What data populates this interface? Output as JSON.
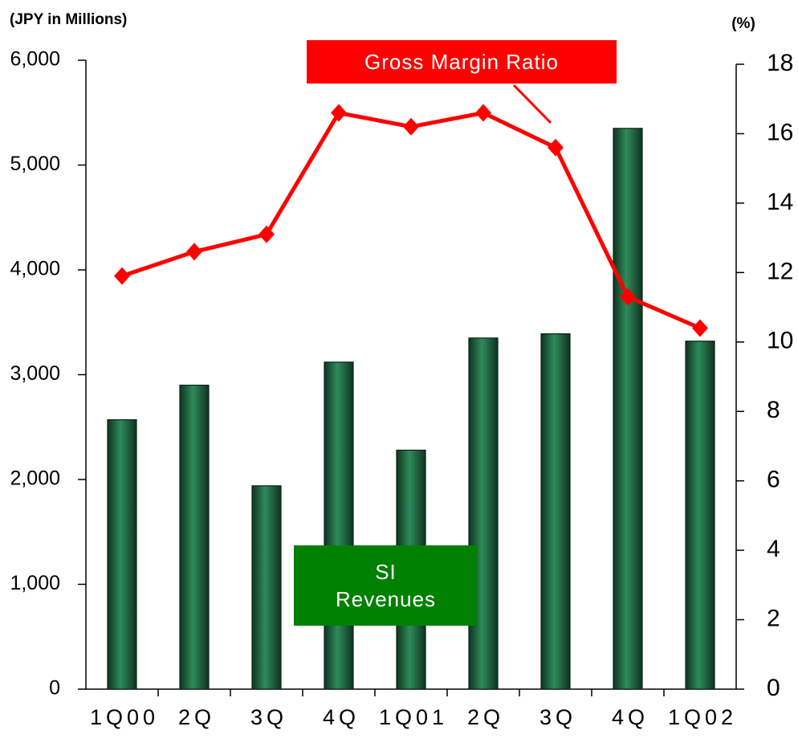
{
  "chart_data": {
    "type": "bar_line",
    "y_label": "(JPY in  Millions)",
    "y2_label": "(%)",
    "categories": [
      "1Q00",
      "2Q",
      "3Q",
      "4Q",
      "1Q01",
      "2Q",
      "3Q",
      "4Q",
      "1Q02"
    ],
    "series": [
      {
        "name": "SI Revenues",
        "type": "bar",
        "color": "#2e8b5a",
        "label_color": "#008000",
        "values": [
          2570,
          2900,
          1940,
          3120,
          2280,
          3350,
          3390,
          5350,
          3320
        ]
      },
      {
        "name": "Gross Margin Ratio",
        "type": "line",
        "axis": "y2",
        "color": "#ff0000",
        "label_color": "#ff0000",
        "values": [
          11.9,
          12.6,
          13.1,
          16.6,
          16.2,
          16.6,
          15.6,
          11.3,
          10.4
        ]
      }
    ],
    "ylim": [
      0,
      6000
    ],
    "yticks": [
      0,
      {
        "value": 1000,
        "label": "1,000"
      },
      {
        "value": 2000,
        "label": "2,000"
      },
      {
        "value": 3000,
        "label": "3,000"
      },
      {
        "value": 4000,
        "label": "4,000"
      },
      {
        "value": 5000,
        "label": "5,000"
      },
      {
        "value": 6000,
        "label": "6,000"
      }
    ],
    "y2lim": [
      0,
      18
    ],
    "y2ticks": [
      0,
      2,
      4,
      6,
      8,
      10,
      12,
      14,
      16,
      18
    ]
  }
}
